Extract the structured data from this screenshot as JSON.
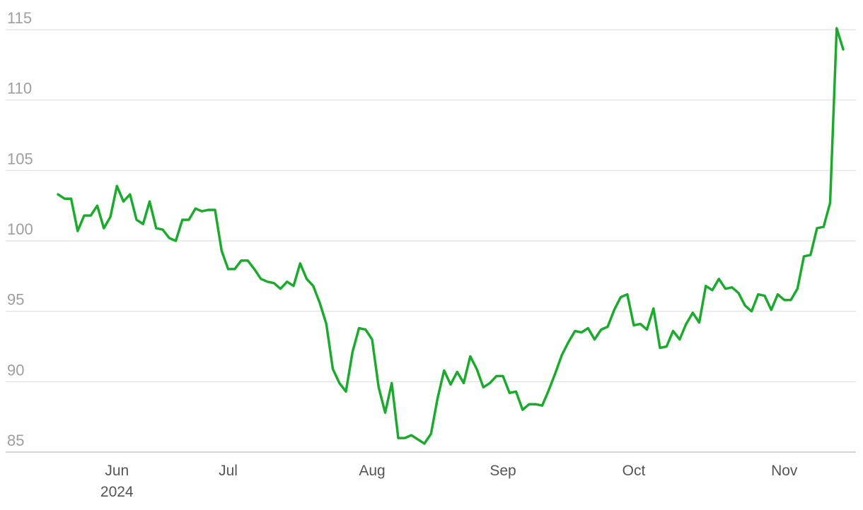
{
  "chart_data": {
    "type": "line",
    "categories": [
      null,
      null,
      null,
      null,
      null,
      null,
      null,
      null,
      null,
      "Jun",
      null,
      null,
      null,
      null,
      null,
      null,
      null,
      null,
      null,
      null,
      null,
      null,
      null,
      null,
      null,
      null,
      "Jul",
      null,
      null,
      null,
      null,
      null,
      null,
      null,
      null,
      null,
      null,
      null,
      null,
      null,
      null,
      null,
      null,
      null,
      null,
      null,
      null,
      null,
      "Aug",
      null,
      null,
      null,
      null,
      null,
      null,
      null,
      null,
      null,
      null,
      null,
      null,
      null,
      null,
      null,
      null,
      null,
      null,
      null,
      "Sep",
      null,
      null,
      null,
      null,
      null,
      null,
      null,
      null,
      null,
      null,
      null,
      null,
      null,
      null,
      null,
      null,
      null,
      null,
      null,
      "Oct",
      null,
      null,
      null,
      null,
      null,
      null,
      null,
      null,
      null,
      null,
      null,
      null,
      null,
      null,
      null,
      null,
      null,
      null,
      null,
      null,
      null,
      null,
      "Nov",
      null,
      null,
      null,
      null,
      null,
      null,
      null,
      null,
      null
    ],
    "x_sublabel": "2024",
    "series": [
      {
        "color": "#1aab2c",
        "values": [
          103.3,
          103.0,
          103.0,
          100.7,
          101.8,
          101.8,
          102.5,
          100.9,
          101.7,
          103.9,
          102.8,
          103.3,
          101.5,
          101.2,
          102.8,
          100.9,
          100.8,
          100.2,
          100.0,
          101.5,
          101.5,
          102.3,
          102.1,
          102.2,
          102.2,
          99.3,
          98.0,
          98.0,
          98.6,
          98.6,
          98.0,
          97.3,
          97.1,
          97.0,
          96.6,
          97.1,
          96.8,
          98.4,
          97.3,
          96.8,
          95.6,
          94.1,
          90.9,
          89.9,
          89.3,
          92.1,
          93.8,
          93.7,
          93.0,
          89.6,
          87.8,
          89.9,
          86.0,
          86.0,
          86.2,
          85.9,
          85.6,
          86.3,
          88.8,
          90.8,
          89.8,
          90.7,
          89.9,
          91.8,
          90.9,
          89.6,
          89.9,
          90.4,
          90.4,
          89.2,
          89.3,
          88.0,
          88.4,
          88.4,
          88.3,
          89.4,
          90.6,
          91.9,
          92.8,
          93.6,
          93.5,
          93.8,
          93.0,
          93.7,
          93.9,
          95.1,
          96.0,
          96.2,
          94.0,
          94.1,
          93.7,
          95.2,
          92.4,
          92.5,
          93.6,
          93.0,
          94.1,
          94.9,
          94.2,
          96.8,
          96.5,
          97.3,
          96.6,
          96.7,
          96.3,
          95.4,
          95.0,
          96.2,
          96.1,
          95.1,
          96.2,
          95.8,
          95.8,
          96.6,
          98.9,
          99.0,
          100.9,
          101.0,
          102.7,
          115.1,
          113.6
        ]
      }
    ],
    "ylim": [
      85,
      115
    ],
    "yticks": [
      85,
      90,
      95,
      100,
      105,
      110,
      115
    ],
    "grid": true
  }
}
